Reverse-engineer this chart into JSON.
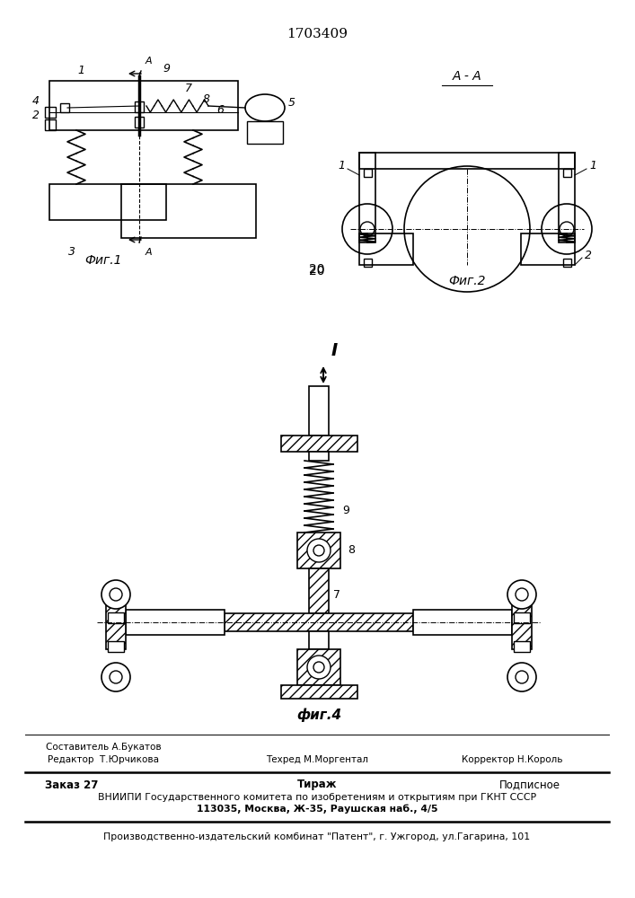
{
  "patent_number": "1703409",
  "background_color": "#ffffff",
  "line_color": "#000000",
  "footer_editor": "Редактор  Т.Юрчикова",
  "footer_composer": "Составитель А.Букатов",
  "footer_techred": "Техред М.Моргентал",
  "footer_corrector": "Корректор Н.Король",
  "footer_order": "Заказ 27",
  "footer_tirazh": "Тираж",
  "footer_podpisnoe": "Подписное",
  "footer_vnipi": "ВНИИПИ Государственного комитета по изобретениям и открытиям при ГКНТ СССР",
  "footer_address": "113035, Москва, Ж-35, Раушская наб., 4/5",
  "footer_publisher": "Производственно-издательский комбинат \"Патент\", г. Ужгород, ул.Гагарина, 101",
  "fig1_label": "Фиг.1",
  "fig2_label": "Фиг.2",
  "fig4_label": "фиг.4",
  "section_label": "А - А",
  "number_20": "20"
}
